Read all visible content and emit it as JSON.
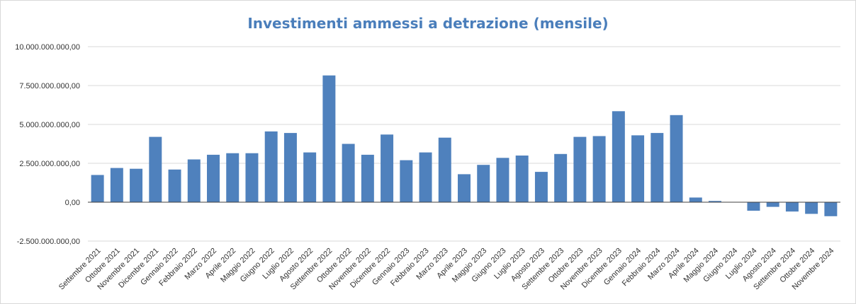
{
  "chart_data": {
    "type": "bar",
    "title": "Investimenti ammessi a detrazione (mensile)",
    "xlabel": "",
    "ylabel": "",
    "ylim": [
      -2500000000,
      10000000000
    ],
    "yticks": [
      10000000000,
      7500000000,
      5000000000,
      2500000000,
      0,
      -2500000000
    ],
    "ytick_labels": [
      "10.000.000.000,00",
      "7.500.000.000,00",
      "5.000.000.000,00",
      "2.500.000.000,00",
      "0,00",
      "-2.500.000.000,00"
    ],
    "grid": true,
    "legend": "none",
    "bar_color": "#4f81bd",
    "categories": [
      "Settembre 2021",
      "Ottobre 2021",
      "Novembre 2021",
      "Dicembre 2021",
      "Gennaio 2022",
      "Febbraio 2022",
      "Marzo 2022",
      "Aprile 2022",
      "Maggio 2022",
      "Giugno 2022",
      "Luglio 2022",
      "Agosto 2022",
      "Settembre 2022",
      "Ottobre 2022",
      "Novembre 2022",
      "Dicembre 2022",
      "Gennaio 2023",
      "Febbraio 2023",
      "Marzo 2023",
      "Aprile 2023",
      "Maggio 2023",
      "Giugno 2023",
      "Luglio 2023",
      "Agosto 2023",
      "Settembre 2023",
      "Ottobre 2023",
      "Novembre 2023",
      "Dicembre 2023",
      "Gennaio 2024",
      "Febbraio 2024",
      "Marzo 2024",
      "Aprile 2024",
      "Maggio 2024",
      "Giugno 2024",
      "Luglio 2024",
      "Agosto 2024",
      "Settembre 2024",
      "Ottobre 2024",
      "Novembre 2024"
    ],
    "values": [
      1750000000,
      2200000000,
      2150000000,
      4200000000,
      2100000000,
      2750000000,
      3050000000,
      3150000000,
      3150000000,
      4550000000,
      4450000000,
      3200000000,
      8150000000,
      3750000000,
      3050000000,
      4350000000,
      2700000000,
      3200000000,
      4150000000,
      1800000000,
      2400000000,
      2850000000,
      3000000000,
      1950000000,
      3100000000,
      4200000000,
      4250000000,
      5850000000,
      4300000000,
      4450000000,
      5600000000,
      300000000,
      80000000,
      20000000,
      -550000000,
      -300000000,
      -600000000,
      -750000000,
      -900000000
    ]
  }
}
